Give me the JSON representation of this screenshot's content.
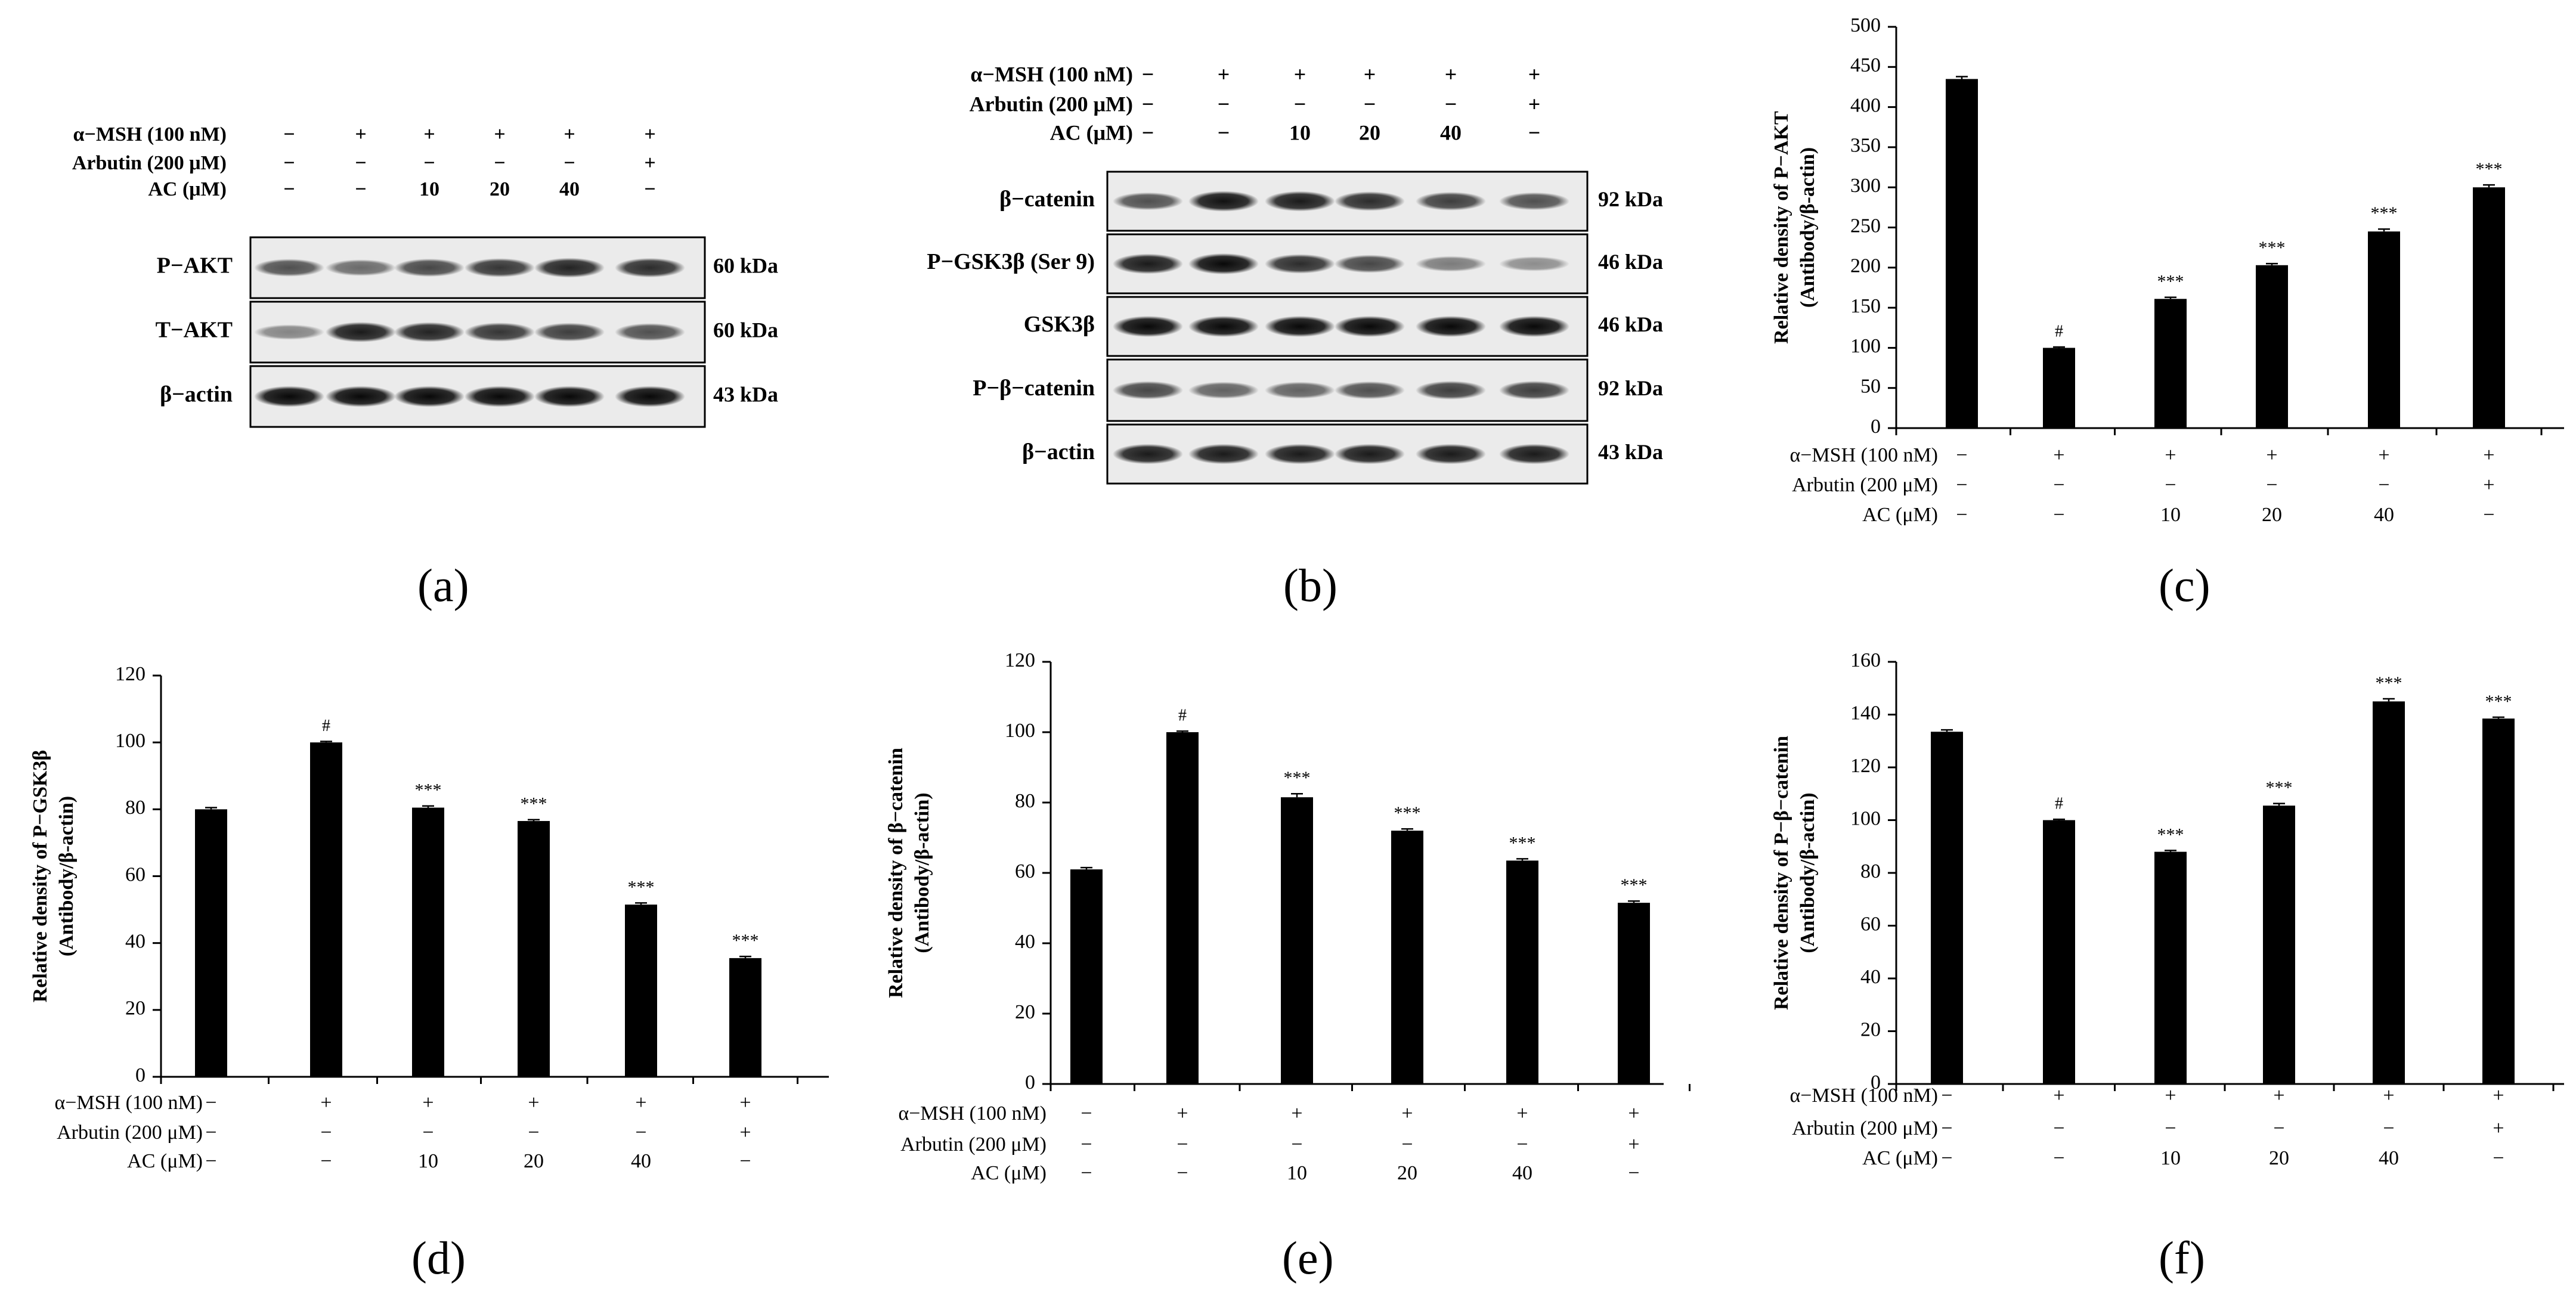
{
  "treatments": {
    "labels": [
      "α−MSH (100 nM)",
      "Arbutin (200 μM)",
      "AC (μM)"
    ],
    "rows": [
      [
        "−",
        "+",
        "+",
        "+",
        "+",
        "+"
      ],
      [
        "−",
        "−",
        "−",
        "−",
        "−",
        "+"
      ],
      [
        "−",
        "−",
        "10",
        "20",
        "40",
        "−"
      ]
    ]
  },
  "blots": [
    {
      "panel": "(a)",
      "bands": [
        {
          "name": "P−AKT",
          "kda": "60 kDa",
          "intensity": [
            0.55,
            0.4,
            0.6,
            0.7,
            0.8,
            0.75
          ]
        },
        {
          "name": "T−AKT",
          "kda": "60 kDa",
          "intensity": [
            0.25,
            0.85,
            0.8,
            0.7,
            0.65,
            0.55
          ]
        },
        {
          "name": "β−actin",
          "kda": "43 kDa",
          "intensity": [
            0.95,
            0.95,
            0.95,
            0.95,
            0.95,
            0.95
          ]
        }
      ]
    },
    {
      "panel": "(b)",
      "bands": [
        {
          "name": "β−catenin",
          "kda": "92 kDa",
          "intensity": [
            0.55,
            0.9,
            0.85,
            0.75,
            0.65,
            0.55
          ]
        },
        {
          "name": "P−GSK3β (Ser 9)",
          "kda": "46 kDa",
          "intensity": [
            0.85,
            0.95,
            0.75,
            0.6,
            0.3,
            0.2
          ]
        },
        {
          "name": "GSK3β",
          "kda": "46 kDa",
          "intensity": [
            0.95,
            0.95,
            0.95,
            0.95,
            0.95,
            0.95
          ]
        },
        {
          "name": "P−β−catenin",
          "kda": "92 kDa",
          "intensity": [
            0.6,
            0.45,
            0.45,
            0.55,
            0.65,
            0.65
          ]
        },
        {
          "name": "β−actin",
          "kda": "43 kDa",
          "intensity": [
            0.85,
            0.85,
            0.85,
            0.85,
            0.85,
            0.85
          ]
        }
      ]
    }
  ],
  "chart_data": [
    {
      "panel": "(c)",
      "type": "bar",
      "ylabel": [
        "Relative density of P−AKT",
        "(Antibody/β-actin)"
      ],
      "ylim": [
        0,
        500
      ],
      "yticks": [
        0,
        50,
        100,
        150,
        200,
        250,
        300,
        350,
        400,
        450,
        500
      ],
      "values": [
        435,
        100,
        161,
        203,
        245,
        300
      ],
      "errors": [
        3,
        1,
        2,
        2,
        3,
        3
      ],
      "annotations": [
        "",
        "#",
        "***",
        "***",
        "***",
        "***"
      ]
    },
    {
      "panel": "(d)",
      "type": "bar",
      "ylabel": [
        "Relative density of P−GSK3β",
        "(Antibody/β-actin)"
      ],
      "ylim": [
        0,
        120
      ],
      "yticks": [
        0,
        20,
        40,
        60,
        80,
        100,
        120
      ],
      "values": [
        80,
        100,
        80.5,
        76.5,
        51.5,
        35.5
      ],
      "errors": [
        0.5,
        0.3,
        0.5,
        0.4,
        0.5,
        0.5
      ],
      "annotations": [
        "",
        "#",
        "***",
        "***",
        "***",
        "***"
      ]
    },
    {
      "panel": "(e)",
      "type": "bar",
      "ylabel": [
        "Relative density of β−catenin",
        "(Antibody/β-actin)"
      ],
      "ylim": [
        0,
        120
      ],
      "yticks": [
        0,
        20,
        40,
        60,
        80,
        100,
        120
      ],
      "values": [
        61,
        100,
        81.5,
        72,
        63.5,
        51.5
      ],
      "errors": [
        0.5,
        0.3,
        1,
        0.5,
        0.5,
        0.5
      ],
      "annotations": [
        "",
        "#",
        "***",
        "***",
        "***",
        "***"
      ]
    },
    {
      "panel": "(f)",
      "type": "bar",
      "ylabel": [
        "Relative density of P−β−catenin",
        "(Antibody/β-actin)"
      ],
      "ylim": [
        0,
        160
      ],
      "yticks": [
        0,
        20,
        40,
        60,
        80,
        100,
        120,
        140,
        160
      ],
      "values": [
        133.5,
        100,
        88,
        105.5,
        145,
        138.5
      ],
      "errors": [
        0.7,
        0.3,
        0.5,
        0.8,
        1,
        0.5
      ],
      "annotations": [
        "",
        "#",
        "***",
        "***",
        "***",
        "***"
      ]
    }
  ]
}
